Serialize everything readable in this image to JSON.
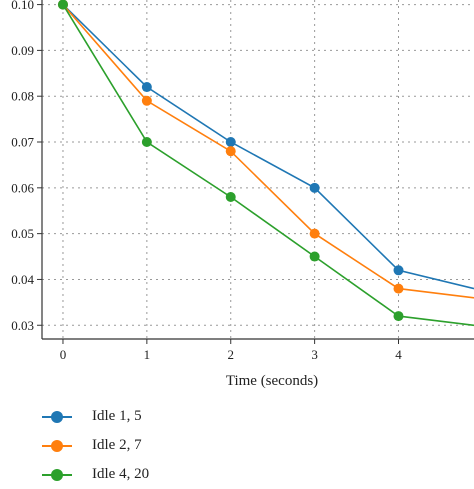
{
  "chart_data": {
    "type": "line",
    "title": "",
    "xlabel": "Time (seconds)",
    "ylabel": "",
    "xlim": [
      -0.25,
      4.9
    ],
    "ylim": [
      0.027,
      0.101
    ],
    "x_ticks": [
      "0",
      "1",
      "2",
      "3",
      "4"
    ],
    "y_ticks": [
      "0.03",
      "0.04",
      "0.05",
      "0.06",
      "0.07",
      "0.08",
      "0.09",
      "0.10"
    ],
    "grid": true,
    "legend_position": "bottom-left",
    "series": [
      {
        "name": "Idle 1, 5",
        "color": "#1f77b4",
        "x": [
          0,
          1,
          2,
          3,
          4,
          4.9
        ],
        "y": [
          0.1,
          0.082,
          0.07,
          0.06,
          0.042,
          0.038
        ],
        "markers": [
          true,
          true,
          true,
          true,
          true,
          false
        ]
      },
      {
        "name": "Idle 2, 7",
        "color": "#ff7f0e",
        "x": [
          0,
          1,
          2,
          3,
          4,
          4.9
        ],
        "y": [
          0.1,
          0.079,
          0.068,
          0.05,
          0.038,
          0.036
        ],
        "markers": [
          true,
          true,
          true,
          true,
          true,
          false
        ]
      },
      {
        "name": "Idle 4, 20",
        "color": "#2ca02c",
        "x": [
          0,
          1,
          2,
          3,
          4,
          4.9
        ],
        "y": [
          0.1,
          0.07,
          0.058,
          0.045,
          0.032,
          0.03
        ],
        "markers": [
          true,
          true,
          true,
          true,
          true,
          false
        ]
      }
    ]
  }
}
